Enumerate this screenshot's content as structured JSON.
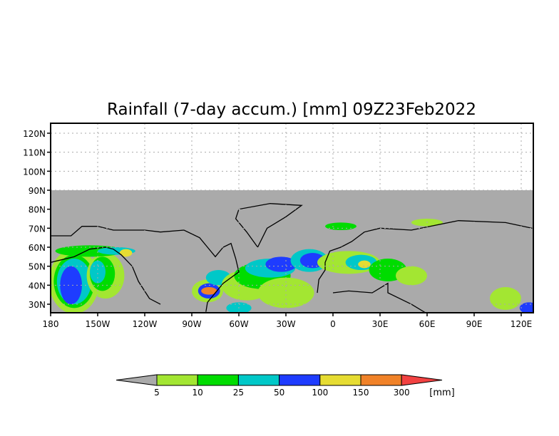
{
  "title": "Rainfall (7-day accum.) [mm] 09Z23Feb2022",
  "map": {
    "lon_range_deg_east": [
      180,
      487
    ],
    "lat_range": [
      25.5,
      125
    ],
    "data_lat_max": 60,
    "masked_lat_max": 90,
    "lat_ticks": [
      {
        "value": 120,
        "label": "120N"
      },
      {
        "value": 110,
        "label": "110N"
      },
      {
        "value": 100,
        "label": "100N"
      },
      {
        "value": 90,
        "label": "90N"
      },
      {
        "value": 80,
        "label": "80N"
      },
      {
        "value": 70,
        "label": "70N"
      },
      {
        "value": 60,
        "label": "60N"
      },
      {
        "value": 50,
        "label": "50N"
      },
      {
        "value": 40,
        "label": "40N"
      },
      {
        "value": 30,
        "label": "30N"
      }
    ],
    "lon_ticks": [
      {
        "value": 180,
        "label": "180"
      },
      {
        "value": 210,
        "label": "150W"
      },
      {
        "value": 240,
        "label": "120W"
      },
      {
        "value": 270,
        "label": "90W"
      },
      {
        "value": 300,
        "label": "60W"
      },
      {
        "value": 330,
        "label": "30W"
      },
      {
        "value": 360,
        "label": "0"
      },
      {
        "value": 390,
        "label": "30E"
      },
      {
        "value": 420,
        "label": "60E"
      },
      {
        "value": 450,
        "label": "90E"
      },
      {
        "value": 480,
        "label": "120E"
      }
    ],
    "mask_color": "#aaaaaa"
  },
  "colorbar": {
    "unit": "[mm]",
    "under_color": "#aaaaaa",
    "over_color": "#f24242",
    "bins": [
      {
        "color": "#a3e632",
        "label": "5"
      },
      {
        "color": "#00dc00",
        "label": "10"
      },
      {
        "color": "#00c8c8",
        "label": "25"
      },
      {
        "color": "#1e3cff",
        "label": "50"
      },
      {
        "color": "#e6dc32",
        "label": "100"
      },
      {
        "color": "#f08228",
        "label": "150"
      }
    ],
    "last_label": "300"
  }
}
